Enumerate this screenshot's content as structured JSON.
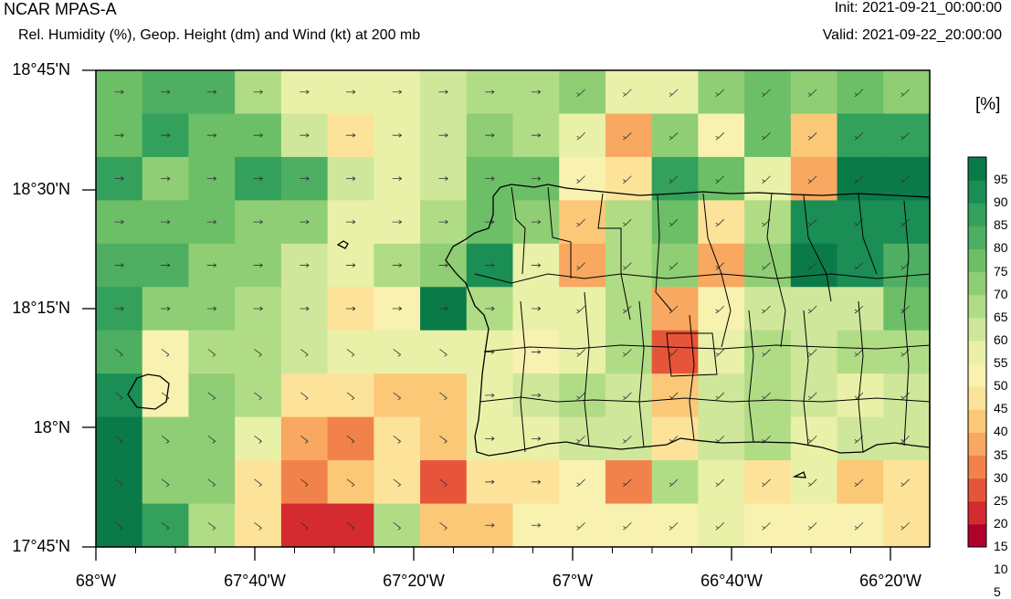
{
  "header": {
    "title": "NCAR MPAS-A",
    "subtitle": "Rel. Humidity (%), Geop. Height (dm) and Wind (kt) at 200 mb",
    "init": "Init: 2021-09-21_00:00:00",
    "valid": "Valid: 2021-09-22_20:00:00"
  },
  "axes": {
    "y_labels": [
      "18°45'N",
      "18°30'N",
      "18°15'N",
      "18°N",
      "17°45'N"
    ],
    "x_labels": [
      "68°W",
      "67°40'W",
      "67°20'W",
      "67°W",
      "66°40'W",
      "66°20'W"
    ]
  },
  "colorbar": {
    "units": "[%]",
    "labels": [
      "95",
      "90",
      "85",
      "80",
      "75",
      "70",
      "65",
      "60",
      "55",
      "50",
      "45",
      "40",
      "35",
      "30",
      "25",
      "20",
      "15",
      "10",
      "5"
    ],
    "colors": [
      "#b0002c",
      "#d42b31",
      "#e6553a",
      "#f2824b",
      "#f8a860",
      "#fbc878",
      "#fde399",
      "#f8f1b0",
      "#e9f1a8",
      "#cfe79a",
      "#b1dc86",
      "#8fce74",
      "#6cbf67",
      "#4eaf62",
      "#33a05c",
      "#1b8e55",
      "#0b7a49"
    ]
  },
  "map": {
    "lon_range": [
      -68.0,
      -66.25
    ],
    "lat_range": [
      17.75,
      18.75
    ],
    "cell_rows": [
      [
        70,
        75,
        75,
        60,
        50,
        50,
        50,
        55,
        60,
        60,
        65,
        50,
        50,
        65,
        70,
        65,
        70,
        65
      ],
      [
        70,
        80,
        70,
        70,
        55,
        40,
        50,
        55,
        65,
        60,
        50,
        30,
        65,
        45,
        70,
        35,
        80,
        80
      ],
      [
        80,
        65,
        70,
        80,
        75,
        55,
        50,
        55,
        70,
        70,
        45,
        40,
        80,
        70,
        50,
        30,
        95,
        95
      ],
      [
        70,
        70,
        70,
        65,
        65,
        50,
        50,
        60,
        70,
        65,
        35,
        60,
        70,
        40,
        60,
        85,
        85,
        85
      ],
      [
        75,
        75,
        65,
        65,
        55,
        50,
        60,
        65,
        85,
        50,
        30,
        60,
        65,
        30,
        65,
        90,
        85,
        75
      ],
      [
        80,
        65,
        65,
        60,
        55,
        40,
        45,
        95,
        60,
        50,
        50,
        60,
        30,
        45,
        55,
        55,
        55,
        70
      ],
      [
        75,
        45,
        60,
        60,
        55,
        50,
        50,
        50,
        50,
        45,
        50,
        60,
        20,
        50,
        60,
        55,
        60,
        60
      ],
      [
        85,
        45,
        65,
        60,
        40,
        40,
        35,
        35,
        50,
        55,
        60,
        55,
        35,
        55,
        60,
        55,
        50,
        55
      ],
      [
        90,
        65,
        65,
        50,
        30,
        25,
        40,
        35,
        50,
        50,
        55,
        55,
        40,
        55,
        60,
        50,
        55,
        55
      ],
      [
        90,
        65,
        65,
        40,
        25,
        35,
        40,
        20,
        40,
        40,
        45,
        25,
        60,
        50,
        40,
        50,
        35,
        40
      ],
      [
        90,
        80,
        60,
        40,
        15,
        15,
        60,
        35,
        35,
        45,
        45,
        45,
        45,
        50,
        45,
        45,
        45,
        40
      ]
    ]
  }
}
